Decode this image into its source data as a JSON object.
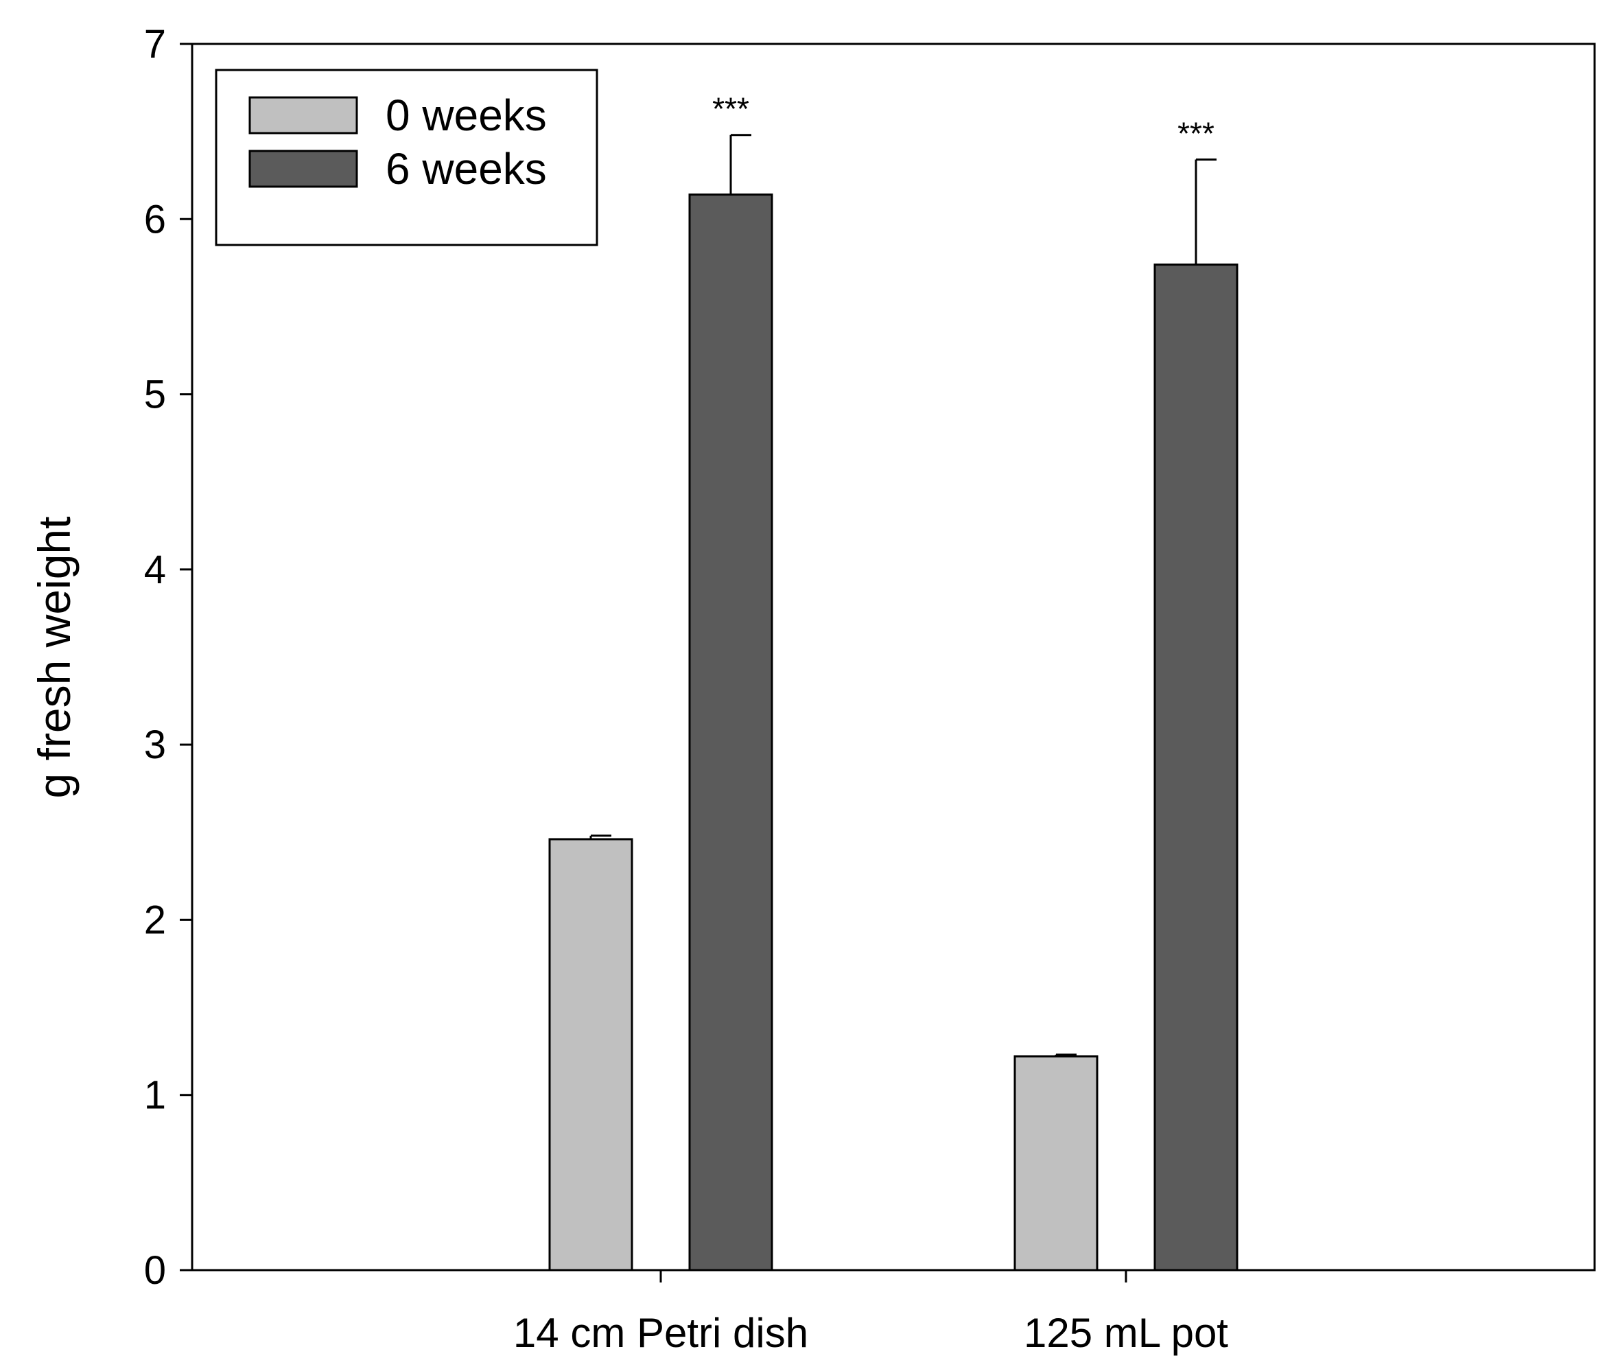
{
  "chart_data": {
    "type": "bar",
    "title": "",
    "xlabel": "",
    "ylabel": "g fresh weight",
    "ylim": [
      0,
      7
    ],
    "yticks": [
      0,
      1,
      2,
      3,
      4,
      5,
      6,
      7
    ],
    "grid": false,
    "legend_position": "top-left",
    "categories": [
      "14 cm Petri dish",
      "125 mL pot"
    ],
    "series": [
      {
        "name": "0 weeks",
        "color": "#c0c0c0",
        "values": [
          2.46,
          1.22
        ],
        "errors": [
          0.02,
          0.01
        ]
      },
      {
        "name": "6 weeks",
        "color": "#5b5b5b",
        "values": [
          6.14,
          5.74
        ],
        "errors": [
          0.34,
          0.6
        ]
      }
    ],
    "annotations": [
      {
        "category": "14 cm Petri dish",
        "series": "6 weeks",
        "text": "***"
      },
      {
        "category": "125 mL pot",
        "series": "6 weeks",
        "text": "***"
      }
    ]
  }
}
